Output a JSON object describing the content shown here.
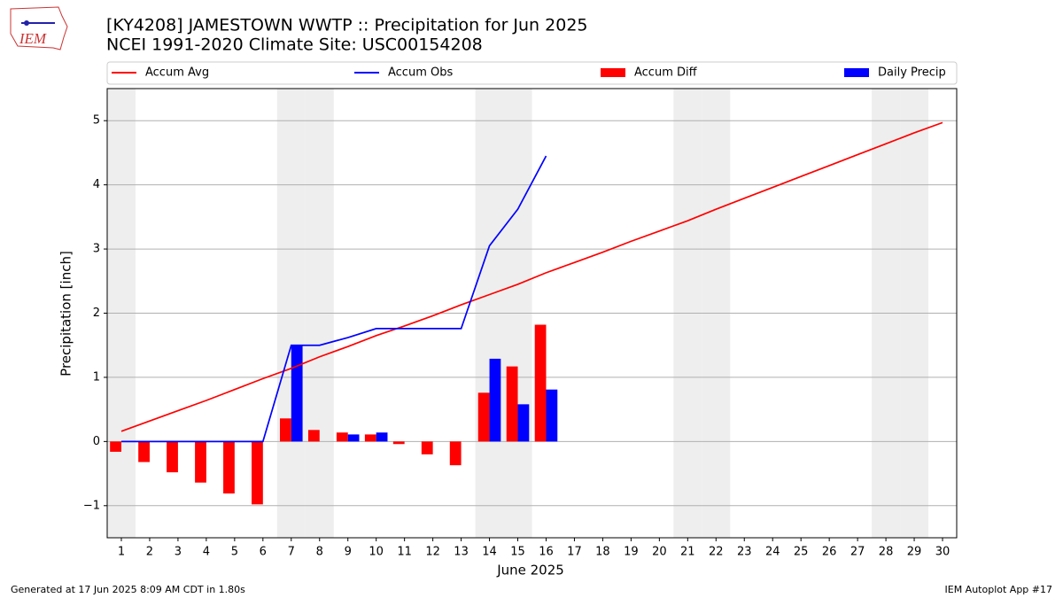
{
  "logo": {
    "text": "IEM"
  },
  "chart_data": {
    "type": "bar",
    "title": "[KY4208] JAMESTOWN WWTP :: Precipitation for Jun 2025",
    "subtitle": "NCEI 1991-2020 Climate Site: USC00154208",
    "x_label": "June 2025",
    "y_label": "Precipitation [inch]",
    "x": [
      1,
      2,
      3,
      4,
      5,
      6,
      7,
      8,
      9,
      10,
      11,
      12,
      13,
      14,
      15,
      16,
      17,
      18,
      19,
      20,
      21,
      22,
      23,
      24,
      25,
      26,
      27,
      28,
      29,
      30
    ],
    "xlim": [
      0.5,
      30.5
    ],
    "xticks": [
      1,
      2,
      3,
      4,
      5,
      6,
      7,
      8,
      9,
      10,
      11,
      12,
      13,
      14,
      15,
      16,
      17,
      18,
      19,
      20,
      21,
      22,
      23,
      24,
      25,
      26,
      27,
      28,
      29,
      30
    ],
    "ylim": [
      -1.5,
      5.5
    ],
    "yticks": [
      {
        "value": -1,
        "label": "−1"
      },
      0,
      1,
      2,
      3,
      4,
      5
    ],
    "grid": true,
    "legend": "top",
    "shaded_days": [
      1,
      7,
      8,
      14,
      15,
      21,
      22,
      28,
      29
    ],
    "series": [
      {
        "name": "Accum Avg",
        "type": "line",
        "color": "#ff0000",
        "values": [
          0.16,
          0.32,
          0.48,
          0.64,
          0.81,
          0.98,
          1.14,
          1.32,
          1.48,
          1.65,
          1.8,
          1.96,
          2.13,
          2.29,
          2.45,
          2.63,
          2.79,
          2.95,
          3.12,
          3.28,
          3.44,
          3.62,
          3.79,
          3.96,
          4.13,
          4.3,
          4.47,
          4.64,
          4.81,
          4.97
        ]
      },
      {
        "name": "Accum Obs",
        "type": "line",
        "color": "#0000ff",
        "values": [
          0,
          0,
          0,
          0,
          0,
          0,
          1.5,
          1.5,
          1.62,
          1.76,
          1.76,
          1.76,
          1.76,
          3.05,
          3.62,
          4.45,
          null,
          null,
          null,
          null,
          null,
          null,
          null,
          null,
          null,
          null,
          null,
          null,
          null,
          null
        ]
      },
      {
        "name": "Accum Diff",
        "type": "bar",
        "color": "#ff0000",
        "values": [
          -0.16,
          -0.32,
          -0.48,
          -0.64,
          -0.81,
          -0.98,
          0.36,
          0.18,
          0.14,
          0.11,
          -0.04,
          -0.2,
          -0.37,
          0.76,
          1.17,
          1.82,
          null,
          null,
          null,
          null,
          null,
          null,
          null,
          null,
          null,
          null,
          null,
          null,
          null,
          null
        ]
      },
      {
        "name": "Daily Precip",
        "type": "bar",
        "color": "#0000ff",
        "values": [
          0,
          0,
          0,
          0,
          0,
          0,
          1.5,
          0,
          0.11,
          0.14,
          0,
          0,
          0,
          1.29,
          0.58,
          0.81,
          null,
          null,
          null,
          null,
          null,
          null,
          null,
          null,
          null,
          null,
          null,
          null,
          null,
          null
        ]
      }
    ]
  },
  "footer": {
    "left": "Generated at 17 Jun 2025 8:09 AM CDT in 1.80s",
    "right": "IEM Autoplot App #17"
  }
}
